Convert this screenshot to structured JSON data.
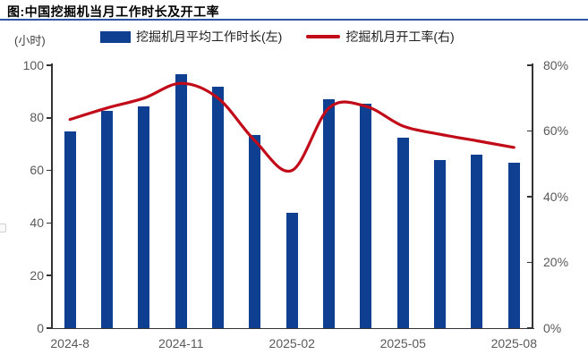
{
  "title": "图:中国挖掘机当月工作时长及开工率",
  "unit_label": "(小时)",
  "legend": {
    "bar_label": "挖掘机月平均工作时长(左)",
    "line_label": "挖掘机月开工率(右)"
  },
  "colors": {
    "bar": "#0e3f90",
    "line": "#c20b19",
    "title_rule": "#2e55a0",
    "axis_text": "#595959",
    "axis_line": "#333333",
    "title_text": "#000000"
  },
  "chart_data": {
    "type": "combo-bar-line",
    "title": "图:中国挖掘机当月工作时长及开工率",
    "grid": false,
    "legend_position": "top",
    "categories": [
      "2024-08",
      "2024-09",
      "2024-10",
      "2024-11",
      "2024-12",
      "2025-01",
      "2025-02",
      "2025-03",
      "2025-04",
      "2025-05",
      "2025-06",
      "2025-07",
      "2025-08"
    ],
    "x_axis": {
      "visible_tick_labels": [
        {
          "index": 0,
          "label": "2024-8"
        },
        {
          "index": 3,
          "label": "2024-11"
        },
        {
          "index": 6,
          "label": "2025-02"
        },
        {
          "index": 9,
          "label": "2025-05"
        },
        {
          "index": 12,
          "label": "2025-08"
        }
      ]
    },
    "left_axis": {
      "unit": "小时",
      "min": 0,
      "max": 100,
      "tick_step": 20,
      "tick_labels": [
        "0",
        "20",
        "40",
        "60",
        "80",
        "100"
      ]
    },
    "right_axis": {
      "unit": "%",
      "min": 0,
      "max": 80,
      "tick_step": 20,
      "tick_labels": [
        "0%",
        "20%",
        "40%",
        "60%",
        "80%"
      ]
    },
    "series": [
      {
        "name": "挖掘机月平均工作时长(左)",
        "type": "bar",
        "axis": "left",
        "color": "#0e3f90",
        "values": [
          75,
          82.5,
          84.5,
          96.5,
          92,
          73.5,
          44,
          87,
          85.5,
          72.5,
          64,
          66,
          63
        ]
      },
      {
        "name": "挖掘机月开工率(右)",
        "type": "line",
        "axis": "right",
        "color": "#c20b19",
        "values": [
          63.5,
          67,
          70,
          74.5,
          70,
          57,
          48,
          67,
          67.5,
          61.5,
          59,
          57,
          55
        ]
      }
    ]
  }
}
